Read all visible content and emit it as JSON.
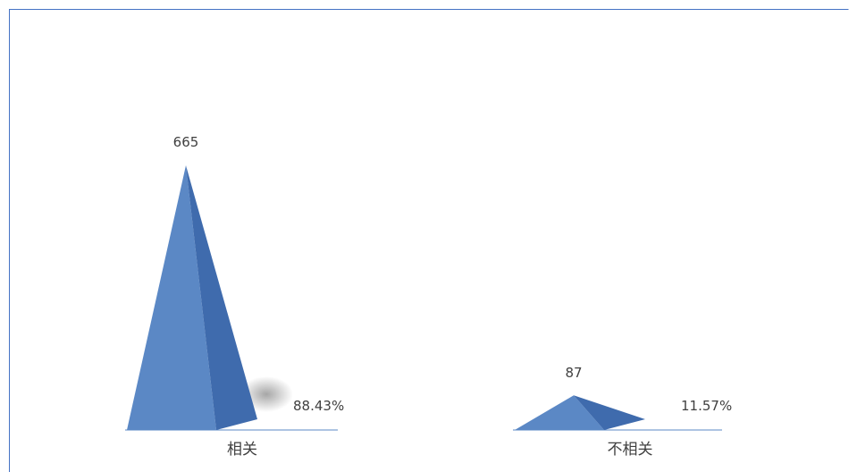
{
  "chart_data": {
    "type": "bar",
    "title": "",
    "xlabel": "",
    "ylabel": "",
    "categories": [
      "相关",
      "不相关"
    ],
    "values": [
      665,
      87
    ],
    "percent_labels": [
      "88.43%",
      "11.57%"
    ],
    "legend": false,
    "grid": false,
    "colors": {
      "front": "#5b88c5",
      "side": "#3f6bad",
      "frame": "#4472c4",
      "axis": "#a6a6a6"
    }
  }
}
